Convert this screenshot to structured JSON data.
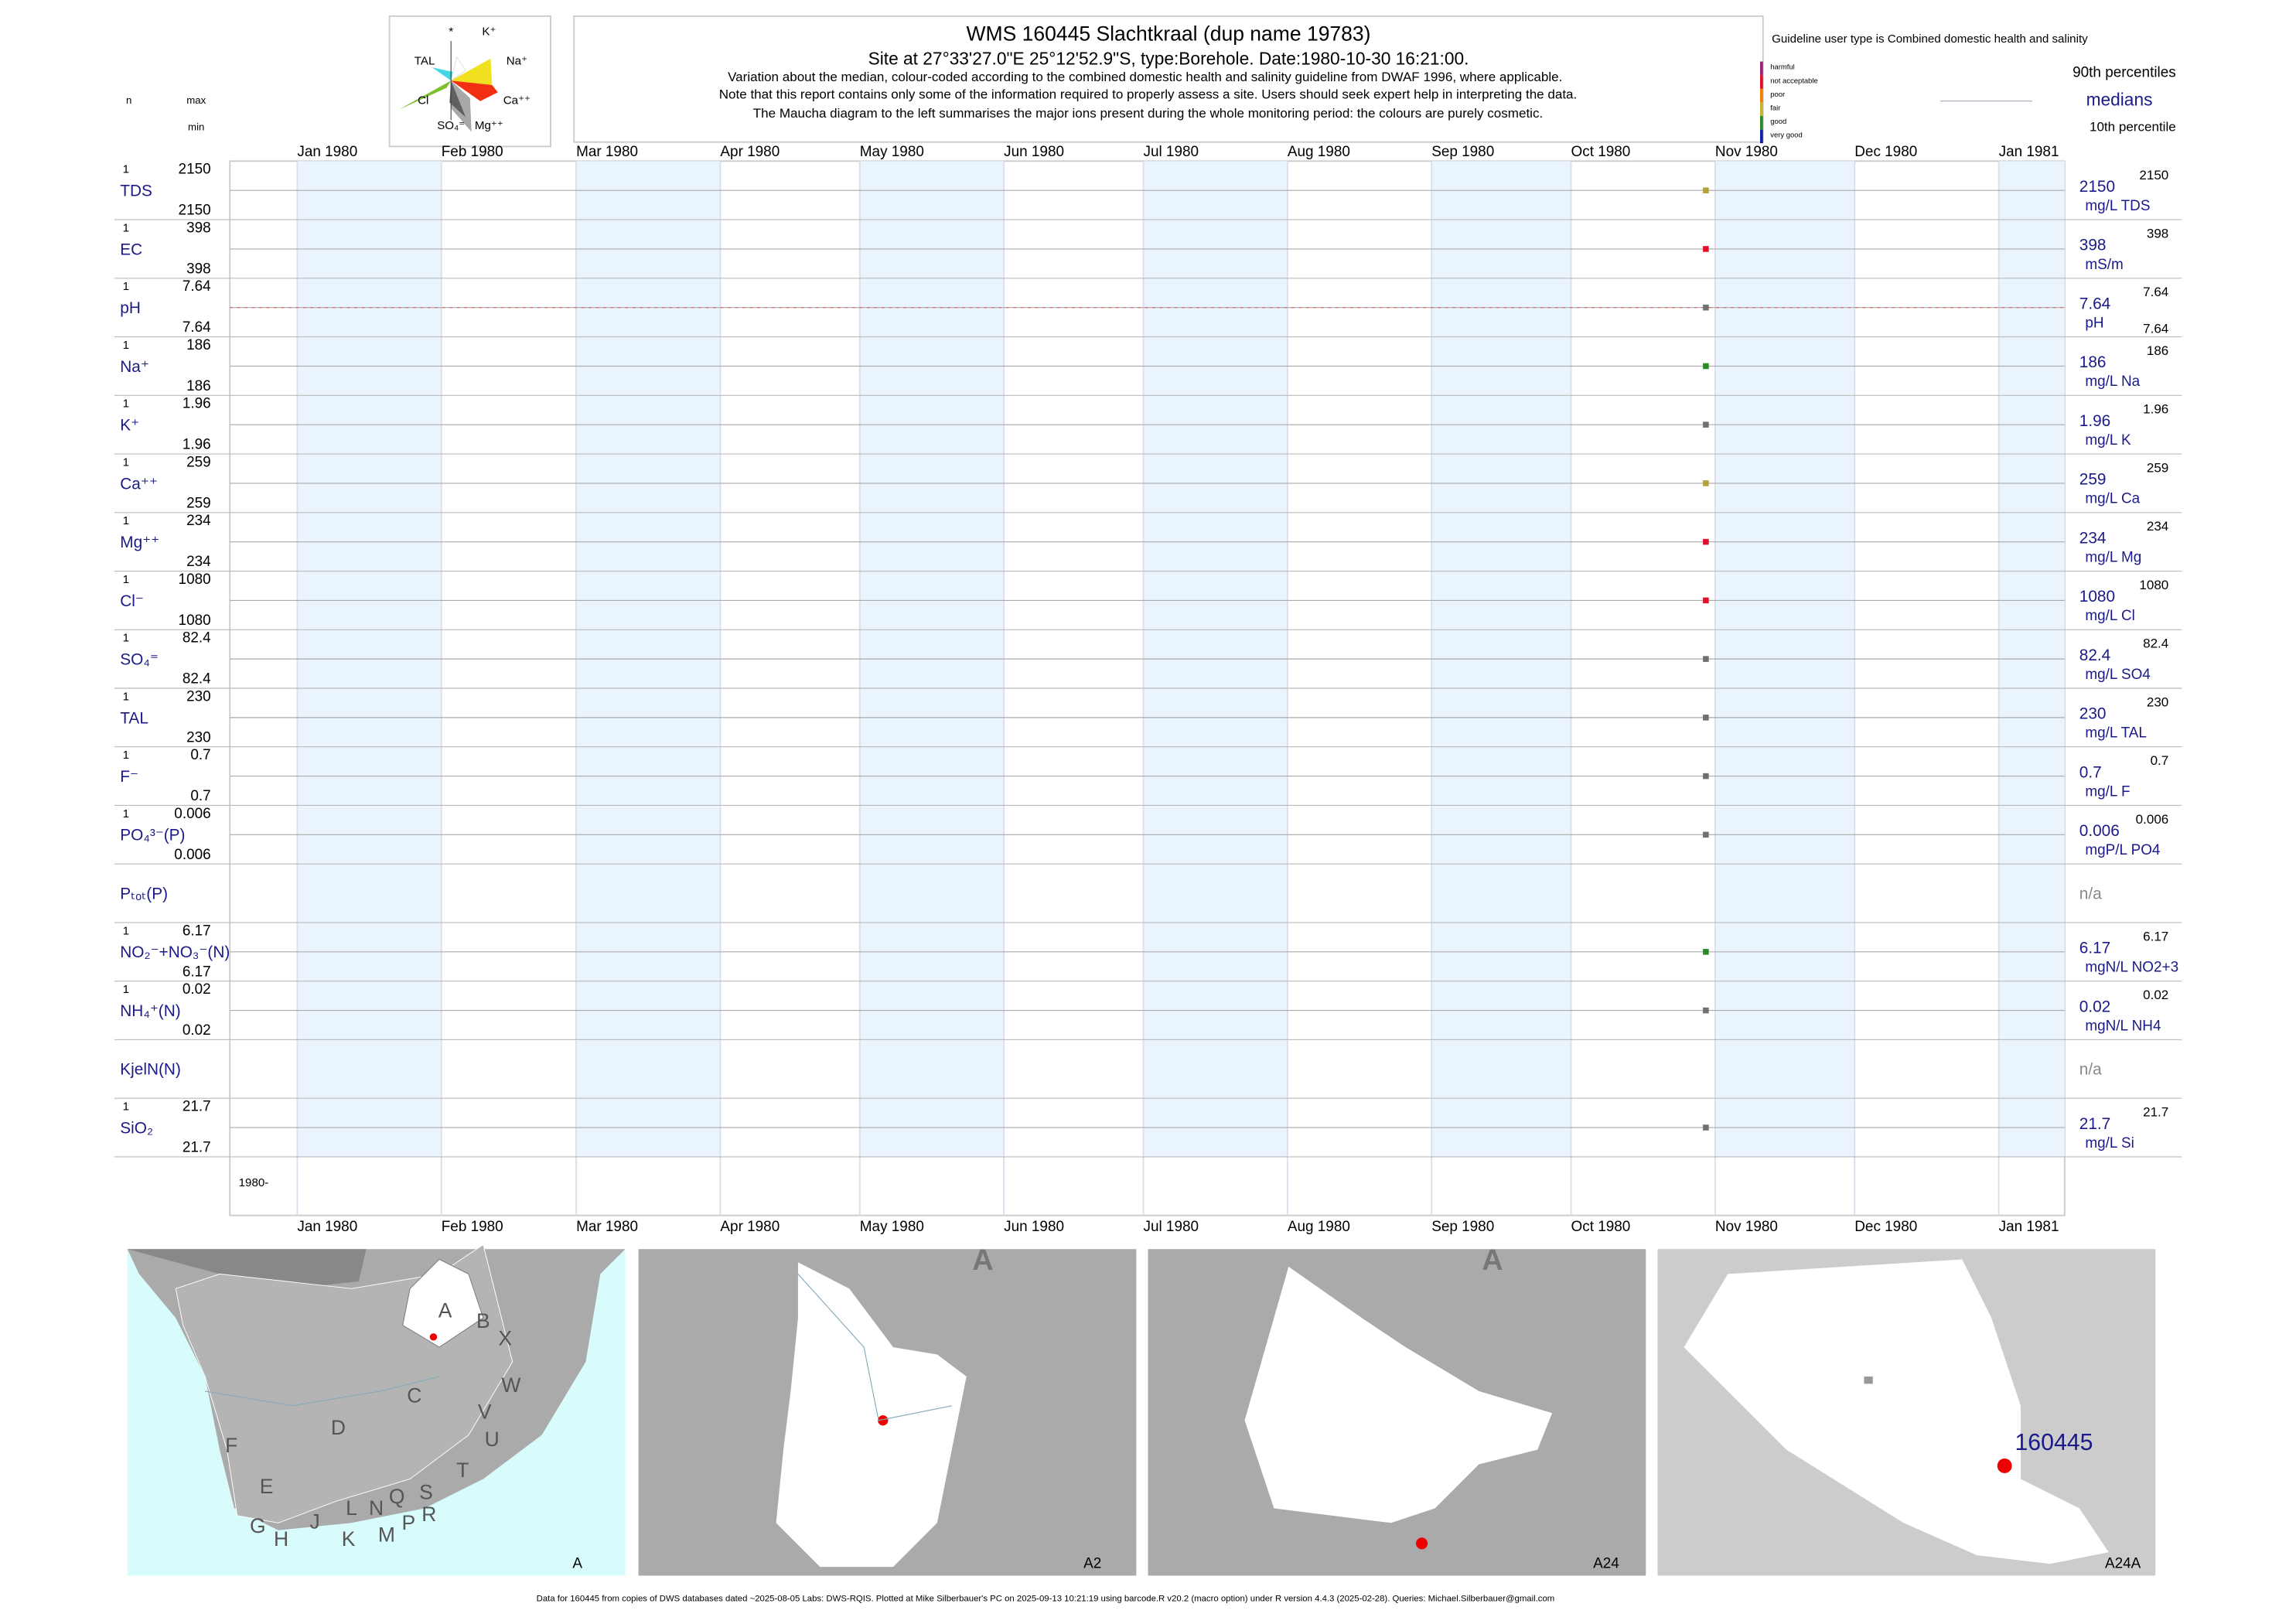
{
  "header": {
    "title": "WMS 160445  Slachtkraal (dup name 19783)",
    "site": "Site at 27°33'27.0\"E 25°12'52.9\"S, type:Borehole. Date:1980-10-30 16:21:00.",
    "notes": [
      "Variation about the median,  colour-coded according to the combined domestic health and salinity guideline from DWAF 1996, where applicable.",
      "Note that this report contains only some of the information required to properly assess a site. Users should seek expert help in interpreting the data.",
      "The Maucha diagram to the left summarises the major ions present during the whole monitoring period: the colours are purely cosmetic."
    ]
  },
  "maucha": {
    "labels": [
      "*",
      "K⁺",
      "TAL",
      "Na⁺",
      "Cl",
      "Ca⁺⁺",
      "SO₄⁼",
      "Mg⁺⁺"
    ]
  },
  "guideline": {
    "title": "Guideline user type is Combined domestic health and salinity",
    "classes": [
      {
        "name": "harmful",
        "color": "#a0207f"
      },
      {
        "name": "not acceptable",
        "color": "#e0102a"
      },
      {
        "name": "poor",
        "color": "#f08000"
      },
      {
        "name": "fair",
        "color": "#c8b030"
      },
      {
        "name": "good",
        "color": "#2a8a2a"
      },
      {
        "name": "very good",
        "color": "#1020a0"
      }
    ]
  },
  "legend": {
    "p90": "90th percentiles",
    "median": "medians",
    "p10": "10th percentile"
  },
  "columns": {
    "n": "n",
    "max": "max",
    "min": "min"
  },
  "months": [
    "Jan 1980",
    "Feb 1980",
    "Mar 1980",
    "Apr 1980",
    "May 1980",
    "Jun 1980",
    "Jul 1980",
    "Aug 1980",
    "Sep 1980",
    "Oct 1980",
    "Nov 1980",
    "Dec 1980",
    "Jan 1981"
  ],
  "year_label": "1980-",
  "rows": [
    {
      "label": "TDS",
      "n": 1,
      "max": 2150,
      "min": 2150,
      "median": 2150,
      "unit": "mg/L TDS",
      "p90": 2150,
      "color": "#b8a038"
    },
    {
      "label": "EC",
      "n": 1,
      "max": 398,
      "min": 398,
      "median": 398,
      "unit": "mS/m",
      "p90": 398,
      "color": "#e0102a"
    },
    {
      "label": "pH",
      "n": 1,
      "max": 7.64,
      "min": 7.64,
      "median": 7.64,
      "unit": "pH",
      "p90": 7.64,
      "p10": 7.64,
      "color": "#707070"
    },
    {
      "label": "Na⁺",
      "n": 1,
      "max": 186,
      "min": 186,
      "median": 186,
      "unit": "mg/L Na",
      "p90": 186,
      "color": "#2a8a2a"
    },
    {
      "label": "K⁺",
      "n": 1,
      "max": 1.96,
      "min": 1.96,
      "median": 1.96,
      "unit": "mg/L K",
      "p90": 1.96,
      "color": "#707070"
    },
    {
      "label": "Ca⁺⁺",
      "n": 1,
      "max": 259,
      "min": 259,
      "median": 259,
      "unit": "mg/L Ca",
      "p90": 259,
      "color": "#b8a038"
    },
    {
      "label": "Mg⁺⁺",
      "n": 1,
      "max": 234,
      "min": 234,
      "median": 234,
      "unit": "mg/L Mg",
      "p90": 234,
      "color": "#e0102a"
    },
    {
      "label": "Cl⁻",
      "n": 1,
      "max": 1080,
      "min": 1080,
      "median": 1080,
      "unit": "mg/L Cl",
      "p90": 1080,
      "color": "#e0102a"
    },
    {
      "label": "SO₄⁼",
      "n": 1,
      "max": 82.4,
      "min": 82.4,
      "median": 82.4,
      "unit": "mg/L SO4",
      "p90": 82.4,
      "color": "#707070"
    },
    {
      "label": "TAL",
      "n": 1,
      "max": 230,
      "min": 230,
      "median": 230,
      "unit": "mg/L TAL",
      "p90": 230,
      "color": "#707070"
    },
    {
      "label": "F⁻",
      "n": 1,
      "max": 0.7,
      "min": 0.7,
      "median": 0.7,
      "unit": "mg/L F",
      "p90": 0.7,
      "color": "#707070"
    },
    {
      "label": "PO₄³⁻(P)",
      "n": 1,
      "max": 0.006,
      "min": 0.006,
      "median": 0.006,
      "unit": "mgP/L PO4",
      "p90": 0.006,
      "color": "#707070"
    },
    {
      "label": "Pₜₒₜ(P)",
      "median": "n/a"
    },
    {
      "label": "NO₂⁻+NO₃⁻(N)",
      "n": 1,
      "max": 6.17,
      "min": 6.17,
      "median": 6.17,
      "unit": "mgN/L NO2+3",
      "p90": 6.17,
      "color": "#2a8a2a"
    },
    {
      "label": "NH₄⁺(N)",
      "n": 1,
      "max": 0.02,
      "min": 0.02,
      "median": 0.02,
      "unit": "mgN/L NH4",
      "p90": 0.02,
      "color": "#707070"
    },
    {
      "label": "KjelN(N)",
      "median": "n/a"
    },
    {
      "label": "SiO₂",
      "n": 1,
      "max": 21.7,
      "min": 21.7,
      "median": 21.7,
      "unit": "mg/L Si",
      "p90": 21.7,
      "color": "#707070"
    }
  ],
  "maps": [
    {
      "label": "A"
    },
    {
      "label": "A2",
      "corner": "A"
    },
    {
      "label": "A24",
      "corner": "A"
    },
    {
      "label": "A24A"
    }
  ],
  "region_letters": [
    "A",
    "B",
    "X",
    "C",
    "W",
    "D",
    "V",
    "U",
    "F",
    "E",
    "T",
    "G",
    "H",
    "J",
    "K",
    "L",
    "N",
    "Q",
    "M",
    "P",
    "S",
    "R"
  ],
  "site_label": "160445",
  "footer": "Data for 160445 from copies of DWS databases dated ~2025-08-05 Labs: DWS-RQIS. Plotted at Mike Silberbauer's PC on 2025-09-13 10:21:19 using barcode.R v20.2 (macro option) under R version 4.4.3 (2025-02-28). Queries: Michael.Silberbauer@gmail.com"
}
